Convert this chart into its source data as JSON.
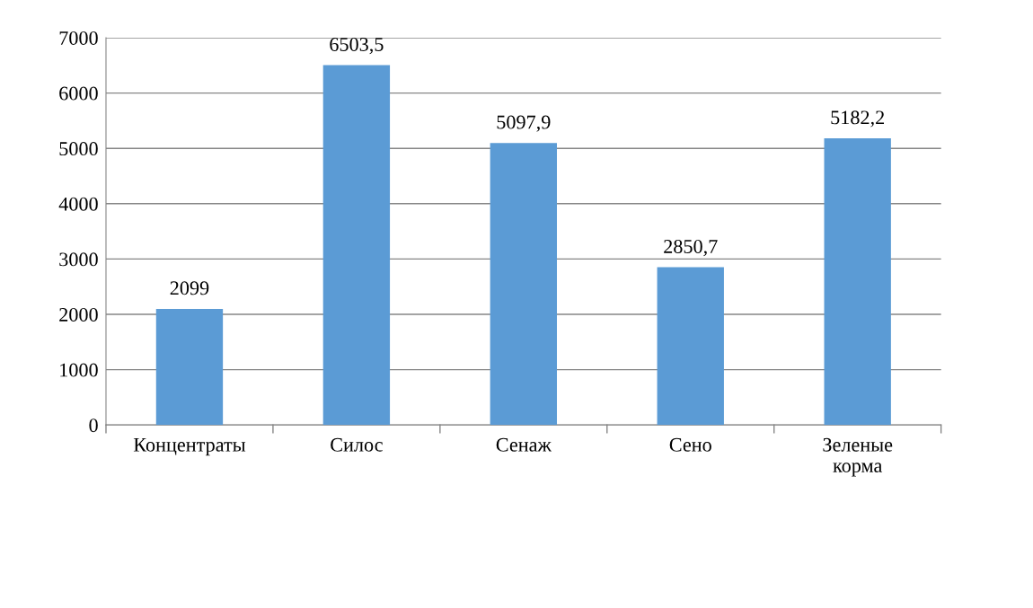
{
  "chart_data": {
    "type": "bar",
    "categories": [
      "Концентраты",
      "Силос",
      "Сенаж",
      "Сено",
      "Зеленые\nкорма"
    ],
    "values": [
      2099,
      6503.5,
      5097.9,
      2850.7,
      5182.2
    ],
    "value_labels": [
      "2099",
      "6503,5",
      "5097,9",
      "2850,7",
      "5182,2"
    ],
    "color": "#5b9bd5",
    "ylim": [
      0,
      7000
    ],
    "yticks": [
      0,
      1000,
      2000,
      3000,
      4000,
      5000,
      6000,
      7000
    ],
    "grid": "y",
    "legend": false
  }
}
